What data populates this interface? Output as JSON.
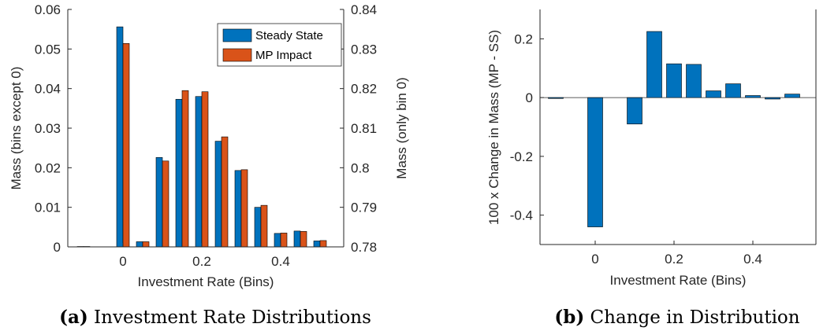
{
  "chart_data": [
    {
      "type": "bar",
      "caption": {
        "label": "(a)",
        "text": " Investment Rate Distributions"
      },
      "xlabel": "Investment Rate (Bins)",
      "ylabel_left": "Mass (bins except 0)",
      "ylabel_right": "Mass (only bin 0)",
      "xlim": [
        -0.14,
        0.56
      ],
      "ylim_left": [
        0,
        0.06
      ],
      "ylim_right": [
        0.78,
        0.84
      ],
      "xticks": [
        0,
        0.2,
        0.4
      ],
      "xtick_labels": [
        "0",
        "0.2",
        "0.4"
      ],
      "yticks_left": [
        0,
        0.01,
        0.02,
        0.03,
        0.04,
        0.05,
        0.06
      ],
      "ytick_labels_left": [
        "0",
        "0.01",
        "0.02",
        "0.03",
        "0.04",
        "0.05",
        "0.06"
      ],
      "yticks_right": [
        0.78,
        0.79,
        0.8,
        0.81,
        0.82,
        0.83,
        0.84
      ],
      "ytick_labels_right": [
        "0.78",
        "0.79",
        "0.8",
        "0.81",
        "0.82",
        "0.83",
        "0.84"
      ],
      "grid": false,
      "legend_position": "top-right",
      "x": [
        -0.1,
        0,
        0.05,
        0.1,
        0.15,
        0.2,
        0.25,
        0.3,
        0.35,
        0.4,
        0.45,
        0.5
      ],
      "series": [
        {
          "name": "Steady State",
          "color": "#0072BD",
          "values": [
            0.0001,
            0.8356,
            0.0013,
            0.0226,
            0.0373,
            0.038,
            0.0267,
            0.0193,
            0.01,
            0.0034,
            0.004,
            0.0015
          ]
        },
        {
          "name": "MP Impact",
          "color": "#D95319",
          "values": [
            0.0001,
            0.8314,
            0.0013,
            0.0217,
            0.0395,
            0.0392,
            0.0278,
            0.0195,
            0.0105,
            0.0035,
            0.0039,
            0.0016
          ]
        }
      ],
      "note": "bin at x = 0 is read against the right axis; all other bins against the left axis"
    },
    {
      "type": "bar",
      "caption": {
        "label": "(b)",
        "text": " Change in Distribution"
      },
      "xlabel": "Investment Rate (Bins)",
      "ylabel": "100 x Change in Mass (MP - SS)",
      "xlim": [
        -0.14,
        0.56
      ],
      "ylim": [
        -0.5,
        0.3
      ],
      "xticks": [
        0,
        0.2,
        0.4
      ],
      "xtick_labels": [
        "0",
        "0.2",
        "0.4"
      ],
      "yticks": [
        -0.4,
        -0.2,
        0,
        0.2
      ],
      "ytick_labels": [
        "-0.4",
        "-0.2",
        "0",
        "0.2"
      ],
      "grid": false,
      "color": "#0072BD",
      "x": [
        -0.1,
        0,
        0.1,
        0.15,
        0.2,
        0.25,
        0.3,
        0.35,
        0.4,
        0.45,
        0.5
      ],
      "values": [
        -0.003,
        -0.44,
        -0.09,
        0.225,
        0.115,
        0.113,
        0.023,
        0.047,
        0.007,
        -0.005,
        0.012
      ]
    }
  ]
}
